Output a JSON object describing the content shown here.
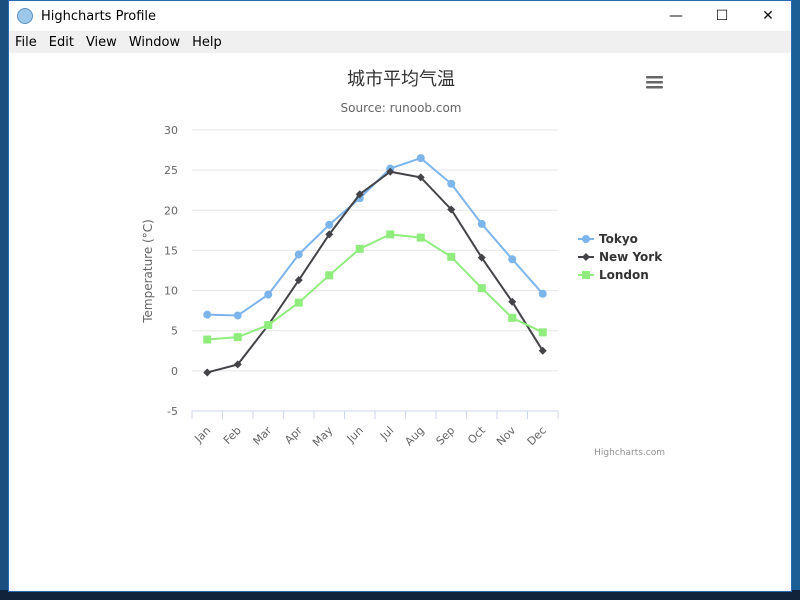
{
  "window": {
    "title": "Highcharts Profile",
    "controls": {
      "minimize": "—",
      "maximize": "☐",
      "close": "✕"
    }
  },
  "menu": {
    "items": [
      "File",
      "Edit",
      "View",
      "Window",
      "Help"
    ]
  },
  "chart": {
    "credits": "Highcharts.com"
  },
  "chart_data": {
    "type": "line",
    "title": "城市平均气温",
    "subtitle": "Source: runoob.com",
    "ylabel": "Temperature (°C)",
    "xlabel": "",
    "categories": [
      "Jan",
      "Feb",
      "Mar",
      "Apr",
      "May",
      "Jun",
      "Jul",
      "Aug",
      "Sep",
      "Oct",
      "Nov",
      "Dec"
    ],
    "ylim": [
      -5,
      30
    ],
    "yticks": [
      -5,
      0,
      5,
      10,
      15,
      20,
      25,
      30
    ],
    "grid": true,
    "legend": "right",
    "series": [
      {
        "name": "Tokyo",
        "color": "#7cb5ec",
        "marker": "circle",
        "values": [
          7.0,
          6.9,
          9.5,
          14.5,
          18.2,
          21.5,
          25.2,
          26.5,
          23.3,
          18.3,
          13.9,
          9.6
        ]
      },
      {
        "name": "New York",
        "color": "#434348",
        "marker": "diamond",
        "values": [
          -0.2,
          0.8,
          5.7,
          11.3,
          17.0,
          22.0,
          24.8,
          24.1,
          20.1,
          14.1,
          8.6,
          2.5
        ]
      },
      {
        "name": "London",
        "color": "#90ed7d",
        "marker": "square",
        "values": [
          3.9,
          4.2,
          5.7,
          8.5,
          11.9,
          15.2,
          17.0,
          16.6,
          14.2,
          10.3,
          6.6,
          4.8
        ]
      }
    ]
  }
}
